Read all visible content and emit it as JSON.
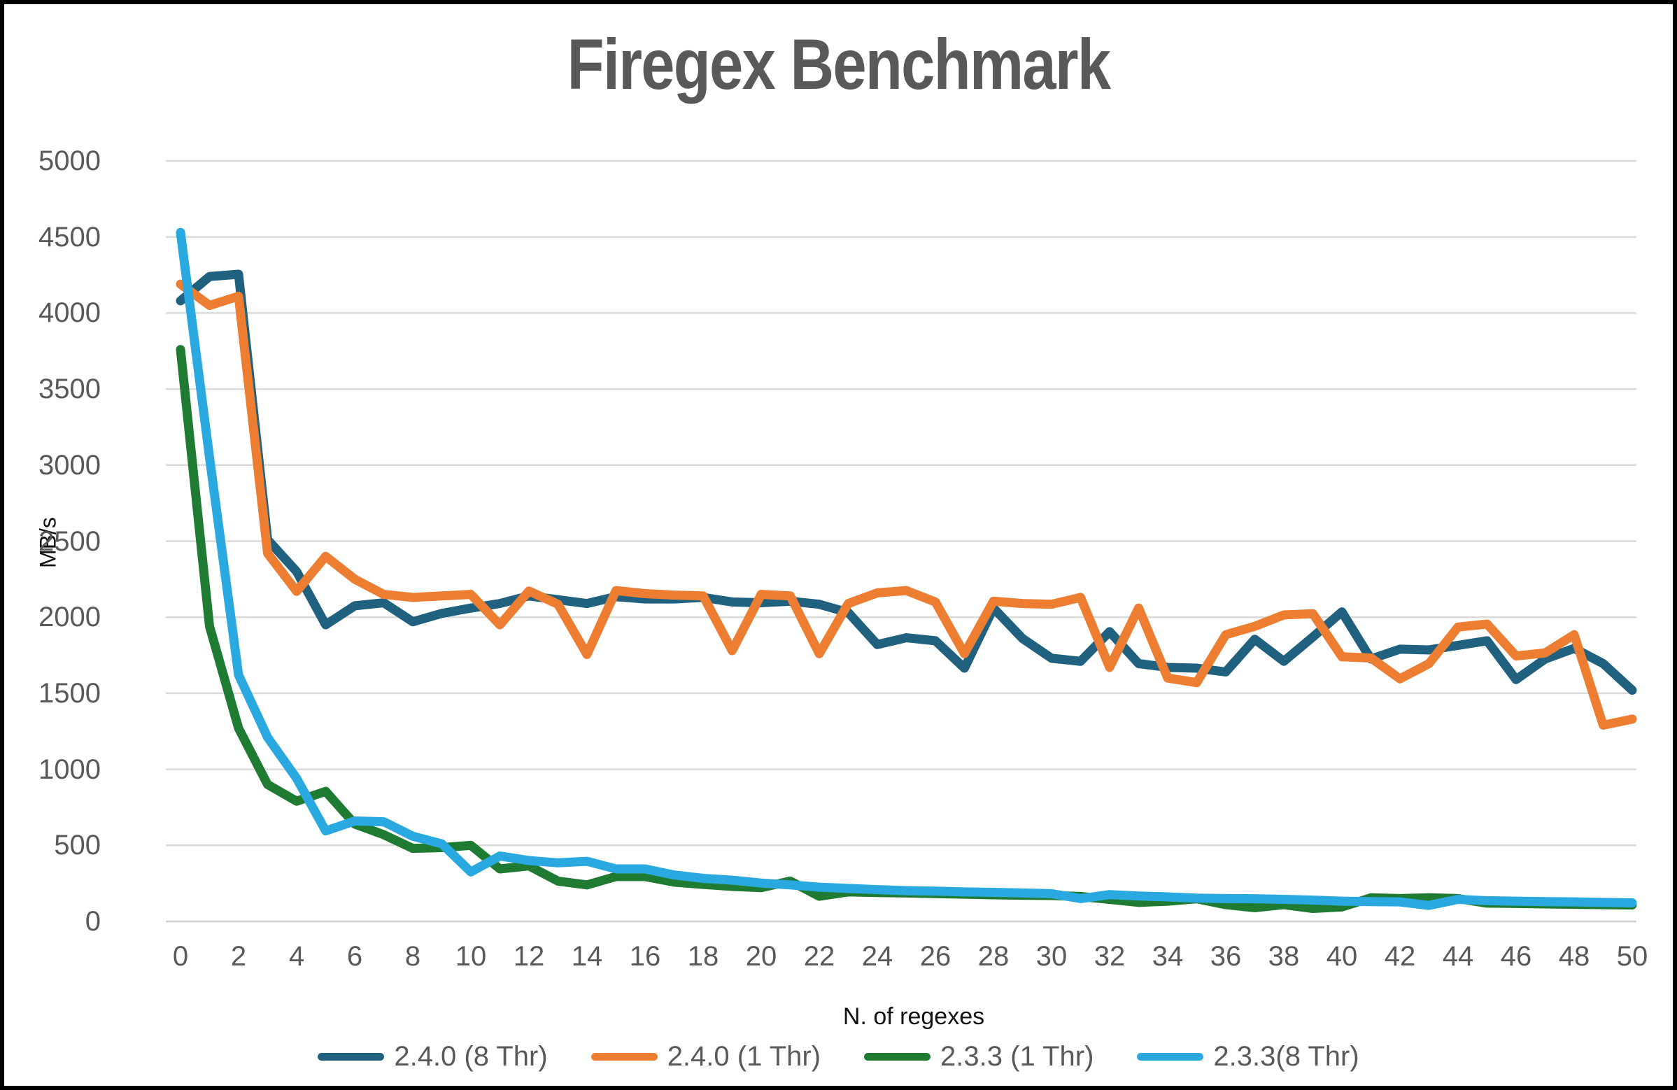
{
  "title": "Firegex Benchmark",
  "y_axis": {
    "label": "MB/s",
    "ticks": [
      0,
      500,
      1000,
      1500,
      2000,
      2500,
      3000,
      3500,
      4000,
      4500,
      5000
    ]
  },
  "x_axis": {
    "label": "N. of regexes",
    "ticks": [
      0,
      2,
      4,
      6,
      8,
      10,
      12,
      14,
      16,
      18,
      20,
      22,
      24,
      26,
      28,
      30,
      32,
      34,
      36,
      38,
      40,
      42,
      44,
      46,
      48,
      50
    ]
  },
  "colors": {
    "grid": "#dadada",
    "axis_line": "#cfcfcf",
    "title_text": "#595959",
    "tick_text": "#595959"
  },
  "chart_data": {
    "type": "line",
    "title": "Firegex Benchmark",
    "xlabel": "N. of regexes",
    "ylabel": "MB/s",
    "ylim": [
      0,
      5000
    ],
    "xlim": [
      0,
      50
    ],
    "grid": true,
    "legend_position": "bottom",
    "x": [
      0,
      1,
      2,
      3,
      4,
      5,
      6,
      7,
      8,
      9,
      10,
      11,
      12,
      13,
      14,
      15,
      16,
      17,
      18,
      19,
      20,
      21,
      22,
      23,
      24,
      25,
      26,
      27,
      28,
      29,
      30,
      31,
      32,
      33,
      34,
      35,
      36,
      37,
      38,
      39,
      40,
      41,
      42,
      43,
      44,
      45,
      46,
      47,
      48,
      49,
      50
    ],
    "series": [
      {
        "name": "2.4.0 (8 Thr)",
        "color": "#20617f",
        "values": [
          4080,
          4240,
          4255,
          2510,
          2300,
          1950,
          2075,
          2095,
          1970,
          2025,
          2060,
          2090,
          2140,
          2115,
          2090,
          2135,
          2120,
          2120,
          2130,
          2100,
          2095,
          2105,
          2085,
          2030,
          1820,
          1865,
          1845,
          1665,
          2060,
          1860,
          1730,
          1710,
          1905,
          1695,
          1670,
          1665,
          1640,
          1855,
          1710,
          1870,
          2035,
          1725,
          1790,
          1785,
          1815,
          1845,
          1590,
          1725,
          1795,
          1695,
          1520
        ]
      },
      {
        "name": "2.4.0 (1 Thr)",
        "color": "#ed7d31",
        "values": [
          4190,
          4050,
          4110,
          2420,
          2170,
          2400,
          2250,
          2150,
          2130,
          2140,
          2150,
          1950,
          2172,
          2085,
          1755,
          2175,
          2155,
          2145,
          2140,
          1780,
          2150,
          2140,
          1760,
          2090,
          2160,
          2175,
          2100,
          1760,
          2105,
          2090,
          2085,
          2130,
          1670,
          2060,
          1600,
          1570,
          1885,
          1940,
          2015,
          2023,
          1740,
          1732,
          1595,
          1695,
          1935,
          1955,
          1745,
          1765,
          1885,
          1290,
          1330
        ]
      },
      {
        "name": "2.3.3 (1 Thr)",
        "color": "#1e7b31",
        "values": [
          3760,
          1940,
          1270,
          900,
          790,
          855,
          640,
          570,
          480,
          485,
          500,
          345,
          365,
          265,
          240,
          295,
          295,
          258,
          243,
          230,
          222,
          265,
          165,
          194,
          190,
          187,
          183,
          179,
          175,
          172,
          170,
          164,
          145,
          125,
          133,
          149,
          110,
          90,
          110,
          85,
          95,
          155,
          150,
          155,
          150,
          120,
          118,
          115,
          112,
          110,
          108
        ]
      },
      {
        "name": "2.3.3(8 Thr)",
        "color": "#29a9e0",
        "values": [
          4530,
          3050,
          1620,
          1210,
          940,
          595,
          660,
          655,
          560,
          510,
          325,
          430,
          400,
          385,
          395,
          345,
          345,
          305,
          283,
          271,
          252,
          240,
          225,
          217,
          209,
          202,
          199,
          194,
          191,
          187,
          182,
          150,
          176,
          167,
          161,
          153,
          150,
          149,
          145,
          140,
          133,
          130,
          128,
          105,
          145,
          136,
          133,
          130,
          128,
          125,
          122
        ]
      }
    ]
  }
}
